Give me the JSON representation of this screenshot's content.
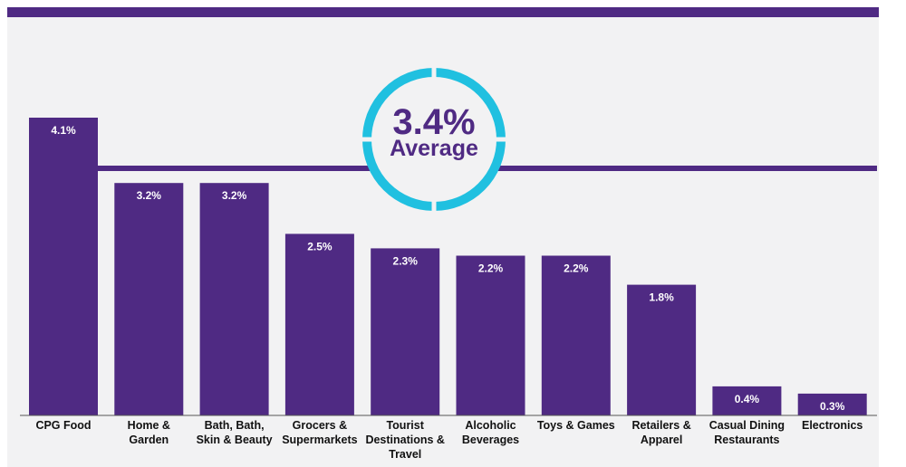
{
  "colors": {
    "bar": "#4f2a83",
    "top_band": "#4f2a83",
    "background_panel": "#f2f2f3",
    "average_line": "#4f2a83",
    "average_ring": "#20c0e0",
    "value_label": "#ffffff",
    "category_label": "#111111"
  },
  "average": {
    "value_label": "3.4%",
    "word": "Average"
  },
  "chart_data": {
    "type": "bar",
    "categories": [
      "CPG Food",
      "Home & Garden",
      "Bath, Bath, Skin & Beauty",
      "Grocers & Supermarkets",
      "Tourist Destinations & Travel",
      "Alcoholic Beverages",
      "Toys & Games",
      "Retailers & Apparel",
      "Casual Dining Restaurants",
      "Electronics"
    ],
    "category_lines": [
      [
        "CPG Food"
      ],
      [
        "Home &",
        "Garden"
      ],
      [
        "Bath, Bath,",
        "Skin & Beauty"
      ],
      [
        "Grocers &",
        "Supermarkets"
      ],
      [
        "Tourist",
        "Destinations &",
        "Travel"
      ],
      [
        "Alcoholic",
        "Beverages"
      ],
      [
        "Toys & Games"
      ],
      [
        "Retailers &",
        "Apparel"
      ],
      [
        "Casual Dining",
        "Restaurants"
      ],
      [
        "Electronics"
      ]
    ],
    "values": [
      4.1,
      3.2,
      3.2,
      2.5,
      2.3,
      2.2,
      2.2,
      1.8,
      0.4,
      0.3
    ],
    "value_labels": [
      "4.1%",
      "3.2%",
      "3.2%",
      "2.5%",
      "2.3%",
      "2.2%",
      "2.2%",
      "1.8%",
      "0.4%",
      "0.3%"
    ],
    "average": 3.4,
    "ylim": [
      0,
      4.1
    ],
    "grid": false,
    "legend": "none"
  }
}
